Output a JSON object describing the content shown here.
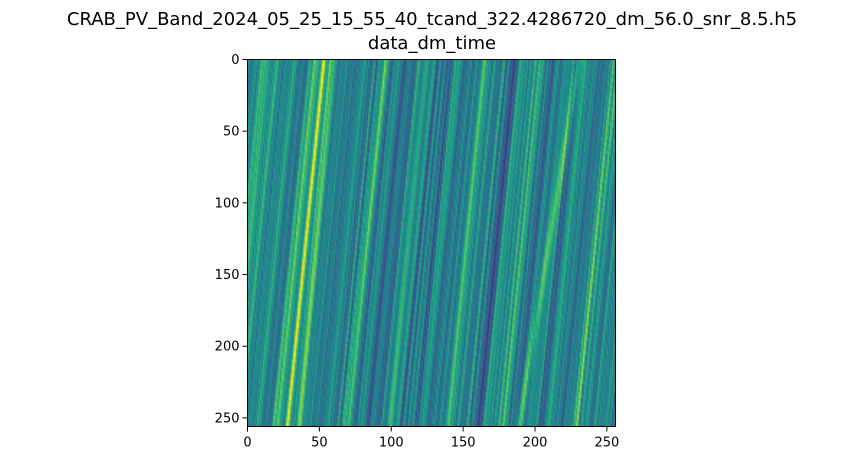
{
  "chart_data": {
    "type": "heatmap",
    "title": "CRAB_PV_Band_2024_05_25_15_55_40_tcand_322.4286720_dm_56.0_snr_8.5.h5",
    "subtitle": "data_dm_time",
    "xlabel": "",
    "ylabel": "",
    "xlim": [
      0,
      256
    ],
    "ylim": [
      256,
      0
    ],
    "xticks": [
      "0",
      "50",
      "100",
      "150",
      "200",
      "250"
    ],
    "yticks": [
      "0",
      "50",
      "100",
      "150",
      "200",
      "250"
    ],
    "xtick_values": [
      0,
      50,
      100,
      150,
      200,
      250
    ],
    "ytick_values": [
      0,
      50,
      100,
      150,
      200,
      250
    ],
    "colormap": "viridis",
    "grid": false,
    "streaks": [
      {
        "x_top": 53,
        "x_bottom": 28,
        "strength": 0.95
      },
      {
        "x_top": 58,
        "x_bottom": 36,
        "strength": 0.7
      },
      {
        "x_top": 47,
        "x_bottom": 20,
        "strength": 0.55
      },
      {
        "x_top": 96,
        "x_bottom": 68,
        "strength": 0.45
      },
      {
        "x_top": 165,
        "x_bottom": 140,
        "strength": 0.35
      },
      {
        "x_top": 230,
        "x_bottom": 188,
        "strength": 0.6
      },
      {
        "x_top": 256,
        "x_bottom": 228,
        "strength": 0.55
      },
      {
        "x_top": 12,
        "x_bottom": -10,
        "strength": 0.35
      },
      {
        "x_top": 120,
        "x_bottom": 98,
        "strength": 0.3
      },
      {
        "x_top": 205,
        "x_bottom": 178,
        "strength": 0.35
      }
    ],
    "troughs": [
      {
        "x_top": 185,
        "x_bottom": 160,
        "strength": 0.7
      },
      {
        "x_top": 110,
        "x_bottom": 84,
        "strength": 0.45
      },
      {
        "x_top": 140,
        "x_bottom": 118,
        "strength": 0.45
      },
      {
        "x_top": 245,
        "x_bottom": 218,
        "strength": 0.45
      },
      {
        "x_top": 75,
        "x_bottom": 50,
        "strength": 0.3
      }
    ]
  }
}
